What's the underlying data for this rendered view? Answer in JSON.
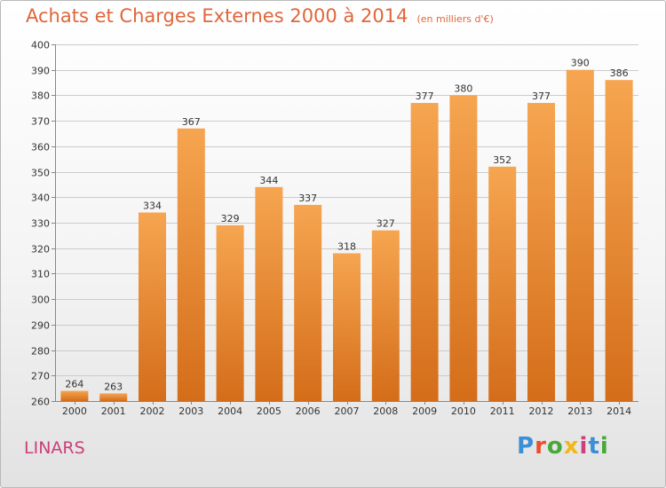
{
  "title": "Achats et Charges Externes 2000 à 2014",
  "title_unit": "(en milliers d'€)",
  "place": "LINARS",
  "logo_text": "Proxiti",
  "colors": {
    "title": "#e0663a",
    "place": "#c9407a",
    "bar_top": "#f6a550",
    "bar_bottom": "#d46d1a",
    "grid": "#cccccc"
  },
  "chart_data": {
    "type": "bar",
    "categories": [
      "2000",
      "2001",
      "2002",
      "2003",
      "2004",
      "2005",
      "2006",
      "2007",
      "2008",
      "2009",
      "2010",
      "2011",
      "2012",
      "2013",
      "2014"
    ],
    "values": [
      264,
      263,
      334,
      367,
      329,
      344,
      337,
      318,
      327,
      377,
      380,
      352,
      377,
      390,
      386
    ],
    "title": "Achats et Charges Externes 2000 à 2014",
    "ylim": [
      260,
      400
    ],
    "yticks": [
      260,
      270,
      280,
      290,
      300,
      310,
      320,
      330,
      340,
      350,
      360,
      370,
      380,
      390,
      400
    ],
    "grid": true
  }
}
